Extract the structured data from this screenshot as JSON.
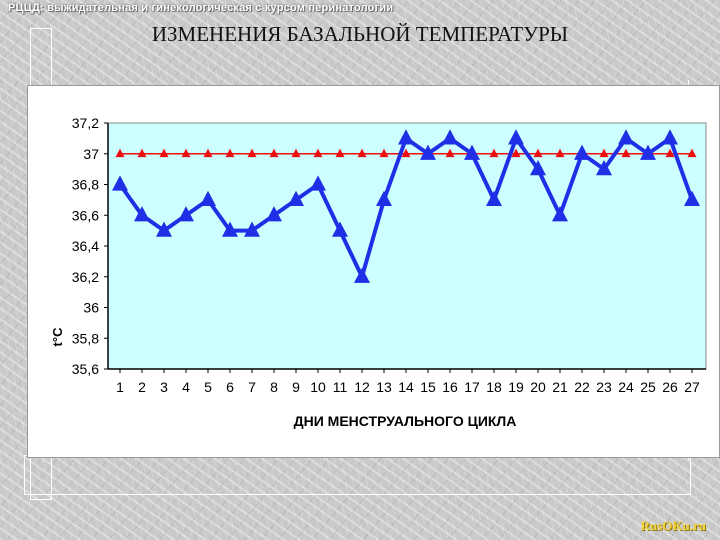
{
  "header": {
    "subtitle": "РЦЦД: выжидательная и гинекологическая с курсом перинатологии"
  },
  "slide": {
    "title": "ИЗМЕНЕНИЯ БАЗАЛЬНОЙ ТЕМПЕРАТУРЫ"
  },
  "watermark": {
    "text": "RusOKu.ru"
  },
  "colors": {
    "plot_bg": "#ccffff",
    "series_main": "#1f2fe6",
    "series_ref": "#ee1010"
  },
  "chart_data": {
    "type": "line",
    "title": "",
    "xlabel": "ДНИ МЕНСТРУАЛЬНОГО ЦИКЛА",
    "ylabel": "t°C",
    "ylim": [
      35.6,
      37.2
    ],
    "yticks": [
      "37,2",
      "37",
      "36,8",
      "36,6",
      "36,4",
      "36,2",
      "36",
      "35,8",
      "35,6"
    ],
    "ytick_values": [
      37.2,
      37.0,
      36.8,
      36.6,
      36.4,
      36.2,
      36.0,
      35.8,
      35.6
    ],
    "x": [
      1,
      2,
      3,
      4,
      5,
      6,
      7,
      8,
      9,
      10,
      11,
      12,
      13,
      14,
      15,
      16,
      17,
      18,
      19,
      20,
      21,
      22,
      23,
      24,
      25,
      26,
      27
    ],
    "grid": false,
    "legend": "none",
    "series": [
      {
        "key": "basal",
        "marker": "triangle",
        "values": [
          36.8,
          36.6,
          36.5,
          36.6,
          36.7,
          36.5,
          36.5,
          36.6,
          36.7,
          36.8,
          36.5,
          36.2,
          36.7,
          37.1,
          37.0,
          37.1,
          37.0,
          36.7,
          37.1,
          36.9,
          36.6,
          37.0,
          36.9,
          37.1,
          37.0,
          37.1,
          36.7
        ]
      },
      {
        "key": "reference",
        "marker": "triangle",
        "values": [
          37,
          37,
          37,
          37,
          37,
          37,
          37,
          37,
          37,
          37,
          37,
          37,
          37,
          37,
          37,
          37,
          37,
          37,
          37,
          37,
          37,
          37,
          37,
          37,
          37,
          37,
          37
        ]
      }
    ]
  }
}
